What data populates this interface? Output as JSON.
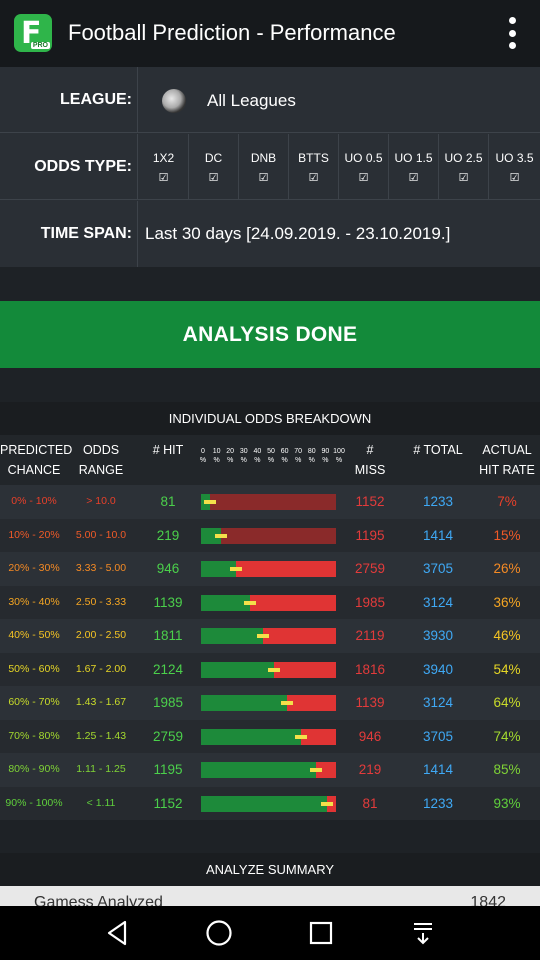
{
  "app": {
    "title": "Football Prediction - Performance",
    "logo_letter": "F",
    "logo_badge": "PRO"
  },
  "filters": {
    "league_label": "LEAGUE:",
    "league_value": "All Leagues",
    "odds_label": "ODDS TYPE:",
    "odds_types": [
      {
        "name": "1X2",
        "checked": "☑"
      },
      {
        "name": "DC",
        "checked": "☑"
      },
      {
        "name": "DNB",
        "checked": "☑"
      },
      {
        "name": "BTTS",
        "checked": "☑"
      },
      {
        "name": "UO 0.5",
        "checked": "☑"
      },
      {
        "name": "UO 1.5",
        "checked": "☑"
      },
      {
        "name": "UO 2.5",
        "checked": "☑"
      },
      {
        "name": "UO 3.5",
        "checked": "☑"
      }
    ],
    "time_label": "TIME SPAN:",
    "time_value": "Last 30 days [24.09.2019. - 23.10.2019.]"
  },
  "analysis_button": "ANALYSIS DONE",
  "breakdown": {
    "title": "INDIVIDUAL ODDS BREAKDOWN",
    "headers": {
      "chance": "PREDICTED CHANCE",
      "range": "ODDS RANGE",
      "hit": "# HIT",
      "miss": "# MISS",
      "total": "# TOTAL",
      "rate": "ACTUAL HIT RATE"
    },
    "scale": [
      "0 %",
      "10 %",
      "20 %",
      "30 %",
      "40 %",
      "50 %",
      "60 %",
      "70 %",
      "80 %",
      "90 %",
      "100 %"
    ],
    "rows": [
      {
        "chance": "0% - 10%",
        "range": "> 10.0",
        "hit": "81",
        "miss": "1152",
        "total": "1233",
        "rate": "7%",
        "hit_rate": 0.07,
        "predicted_mid": 0.05,
        "color": "#e8402a"
      },
      {
        "chance": "10% - 20%",
        "range": "5.00 - 10.0",
        "hit": "219",
        "miss": "1195",
        "total": "1414",
        "rate": "15%",
        "hit_rate": 0.15,
        "predicted_mid": 0.15,
        "color": "#f05a28"
      },
      {
        "chance": "20% - 30%",
        "range": "3.33 - 5.00",
        "hit": "946",
        "miss": "2759",
        "total": "3705",
        "rate": "26%",
        "hit_rate": 0.26,
        "predicted_mid": 0.25,
        "color": "#f58a24"
      },
      {
        "chance": "30% - 40%",
        "range": "2.50 - 3.33",
        "hit": "1139",
        "miss": "1985",
        "total": "3124",
        "rate": "36%",
        "hit_rate": 0.36,
        "predicted_mid": 0.35,
        "color": "#f5a623"
      },
      {
        "chance": "40% - 50%",
        "range": "2.00 - 2.50",
        "hit": "1811",
        "miss": "2119",
        "total": "3930",
        "rate": "46%",
        "hit_rate": 0.46,
        "predicted_mid": 0.45,
        "color": "#f5c423"
      },
      {
        "chance": "50% - 60%",
        "range": "1.67 - 2.00",
        "hit": "2124",
        "miss": "1816",
        "total": "3940",
        "rate": "54%",
        "hit_rate": 0.54,
        "predicted_mid": 0.55,
        "color": "#e6d626"
      },
      {
        "chance": "60% - 70%",
        "range": "1.43 - 1.67",
        "hit": "1985",
        "miss": "1139",
        "total": "3124",
        "rate": "64%",
        "hit_rate": 0.64,
        "predicted_mid": 0.65,
        "color": "#c9dc2a"
      },
      {
        "chance": "70% - 80%",
        "range": "1.25 - 1.43",
        "hit": "2759",
        "miss": "946",
        "total": "3705",
        "rate": "74%",
        "hit_rate": 0.74,
        "predicted_mid": 0.75,
        "color": "#a3d92f"
      },
      {
        "chance": "80% - 90%",
        "range": "1.11 - 1.25",
        "hit": "1195",
        "miss": "219",
        "total": "1414",
        "rate": "85%",
        "hit_rate": 0.85,
        "predicted_mid": 0.85,
        "color": "#7fd336"
      },
      {
        "chance": "90% - 100%",
        "range": "< 1.11",
        "hit": "1152",
        "miss": "81",
        "total": "1233",
        "rate": "93%",
        "hit_rate": 0.93,
        "predicted_mid": 0.95,
        "color": "#5fcf3c"
      }
    ]
  },
  "summary": {
    "title": "ANALYZE SUMMARY",
    "label": "Gamess Analyzed",
    "value": "1842"
  }
}
